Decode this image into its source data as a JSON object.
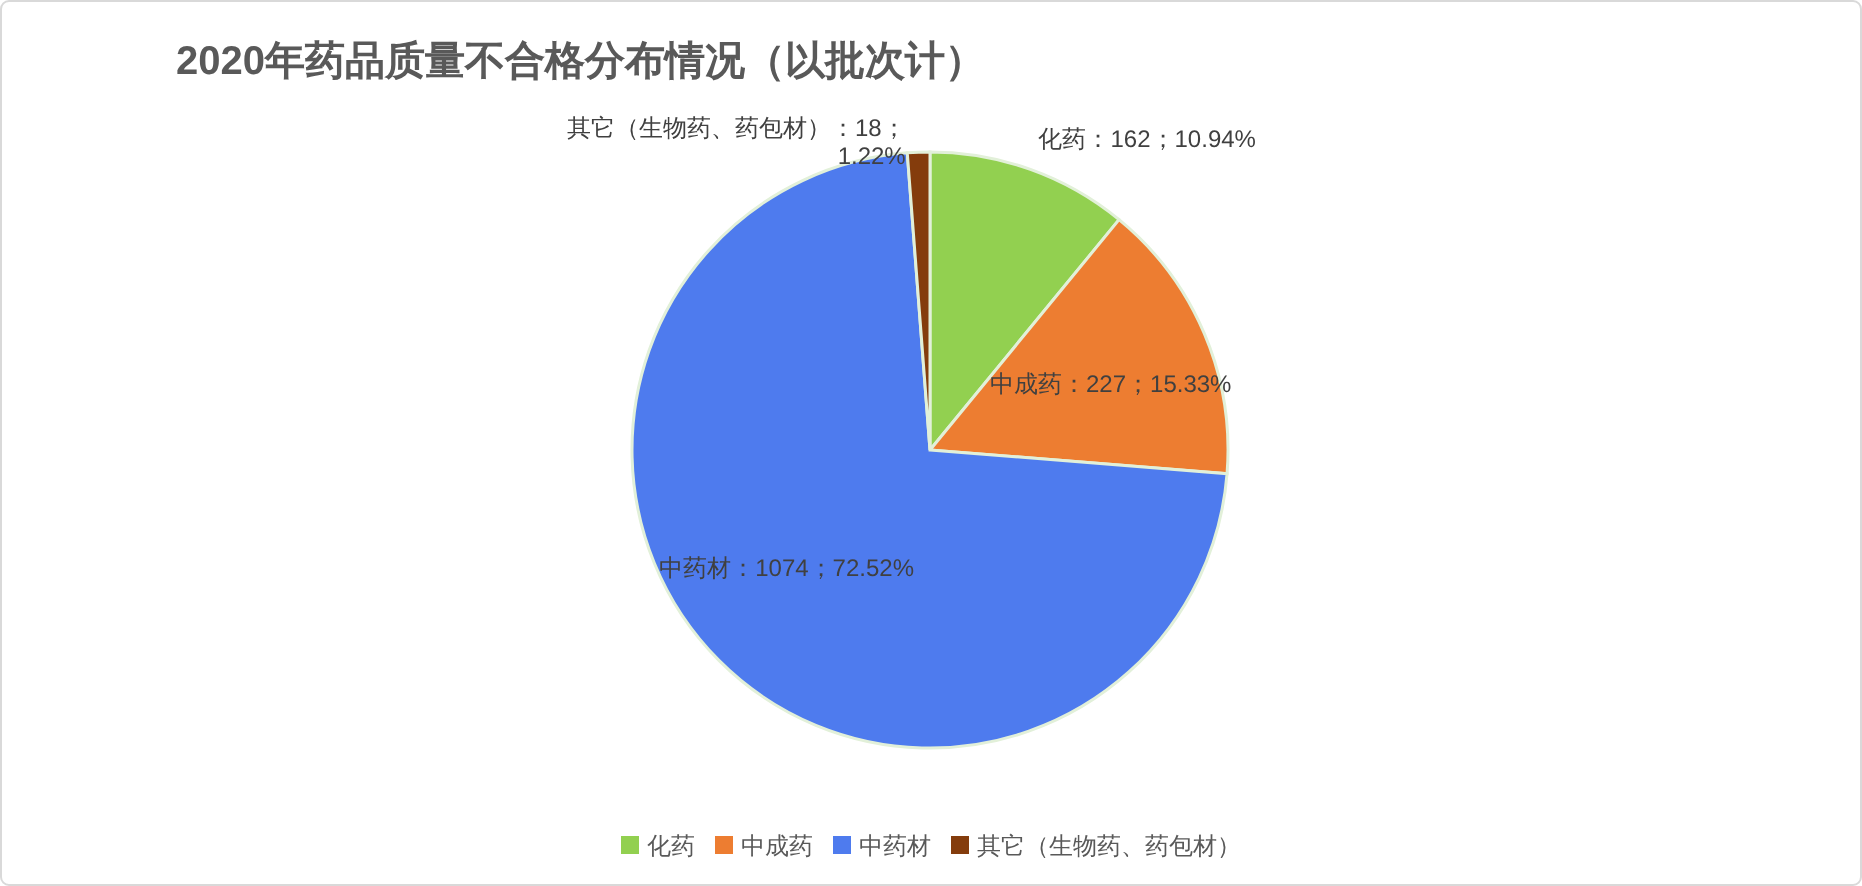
{
  "chart_data": {
    "type": "pie",
    "title": "2020年药品质量不合格分布情况（以批次计）",
    "categories": [
      "化药",
      "中成药",
      "中药材",
      "其它（生物药、药包材）"
    ],
    "values": [
      162,
      227,
      1074,
      18
    ],
    "colors": [
      "#92d050",
      "#ed7d31",
      "#4e7bee",
      "#843c0c"
    ],
    "value_labels": [
      "化药：162；10.94%",
      "中成药：227；15.33%",
      "中药材：1074；72.52%",
      "其它（生物药、药包材）：18；1.22%"
    ],
    "legend": "bottom"
  }
}
